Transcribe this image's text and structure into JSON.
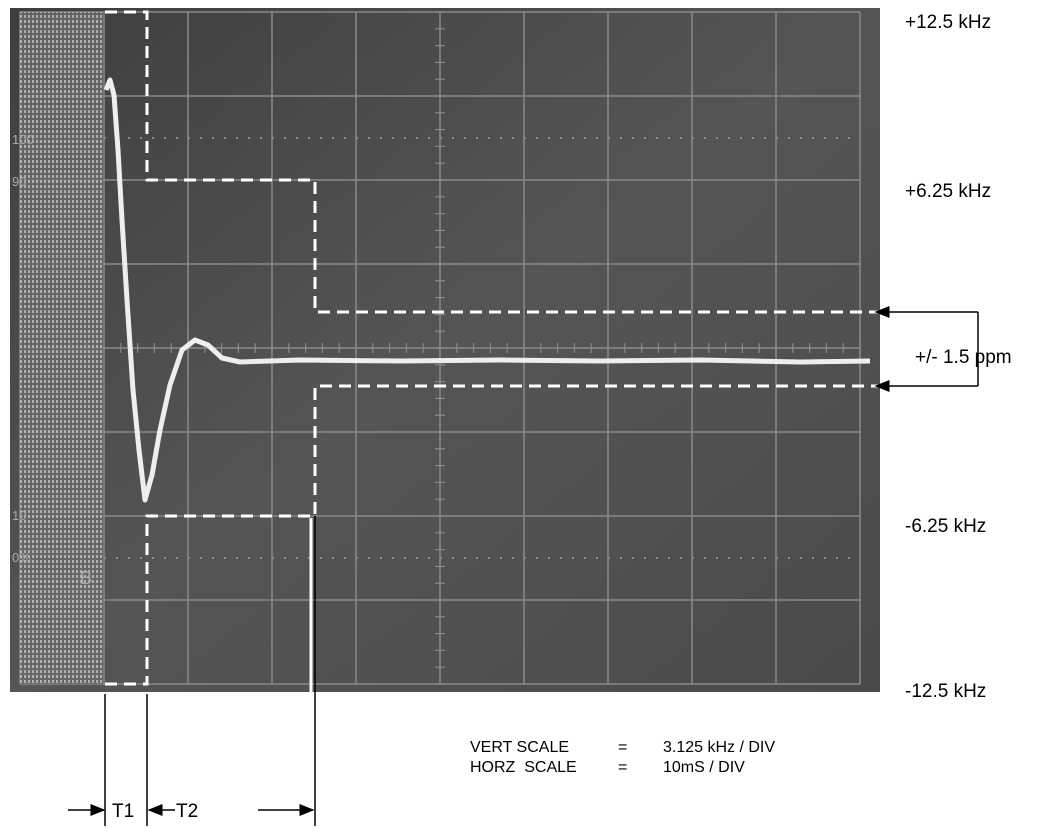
{
  "scale_labels": [
    "+12.5 kHz",
    "+6.25 kHz",
    "-6.25 kHz",
    "-12.5 kHz"
  ],
  "tolerance_label": "+/- 1.5 ppm",
  "screen_labels": [
    "100",
    "90",
    "10",
    "0%",
    "B"
  ],
  "settings": [
    {
      "name": "VERT SCALE",
      "sep": "=",
      "value": "3.125 kHz / DIV"
    },
    {
      "name": "HORZ  SCALE",
      "sep": "=",
      "value": "10mS / DIV"
    }
  ],
  "intervals": [
    "T1",
    "T2"
  ]
}
